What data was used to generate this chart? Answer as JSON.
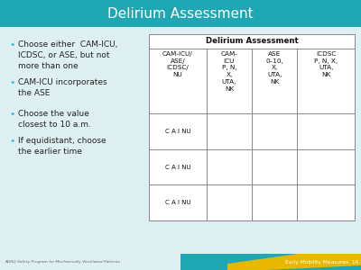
{
  "title": "Delirium Assessment",
  "header_bg": "#1fa8b4",
  "header_text_color": "#ffffff",
  "slide_bg": "#dff0f2",
  "bullet_points": [
    "Choose either  CAM-ICU,\nICDSC, or ASE, but not\nmore than one",
    "CAM-ICU incorporates\nthe ASE",
    "Choose the value\nclosest to 10 a.m.",
    "If equidistant, choose\nthe earlier time"
  ],
  "table_title": "Delirium Assessment",
  "col_headers": [
    "CAM-ICU/\nASE/\nICDSC/\nNU",
    "CAM-\nICU\nP, N,\nX,\nUTA,\nNK",
    "ASE\n0–10,\nX,\nUTA,\nNK",
    "ICDSC\nP, N, X,\nUTA,\nNK"
  ],
  "data_rows": [
    [
      "C A I NU",
      "",
      "",
      ""
    ],
    [
      "C A I NU",
      "",
      "",
      ""
    ],
    [
      "C A I NU",
      "",
      "",
      ""
    ]
  ],
  "footer_left": "AHRQ Safety Program for Mechanically Ventilated Patients",
  "footer_right": "Early Mobility Measures  16",
  "footer_bar_teal": "#1fa8b4",
  "footer_bar_yellow": "#e8b800",
  "bullet_color": "#3bbfd4",
  "text_color": "#222222",
  "table_line_color": "#888888"
}
